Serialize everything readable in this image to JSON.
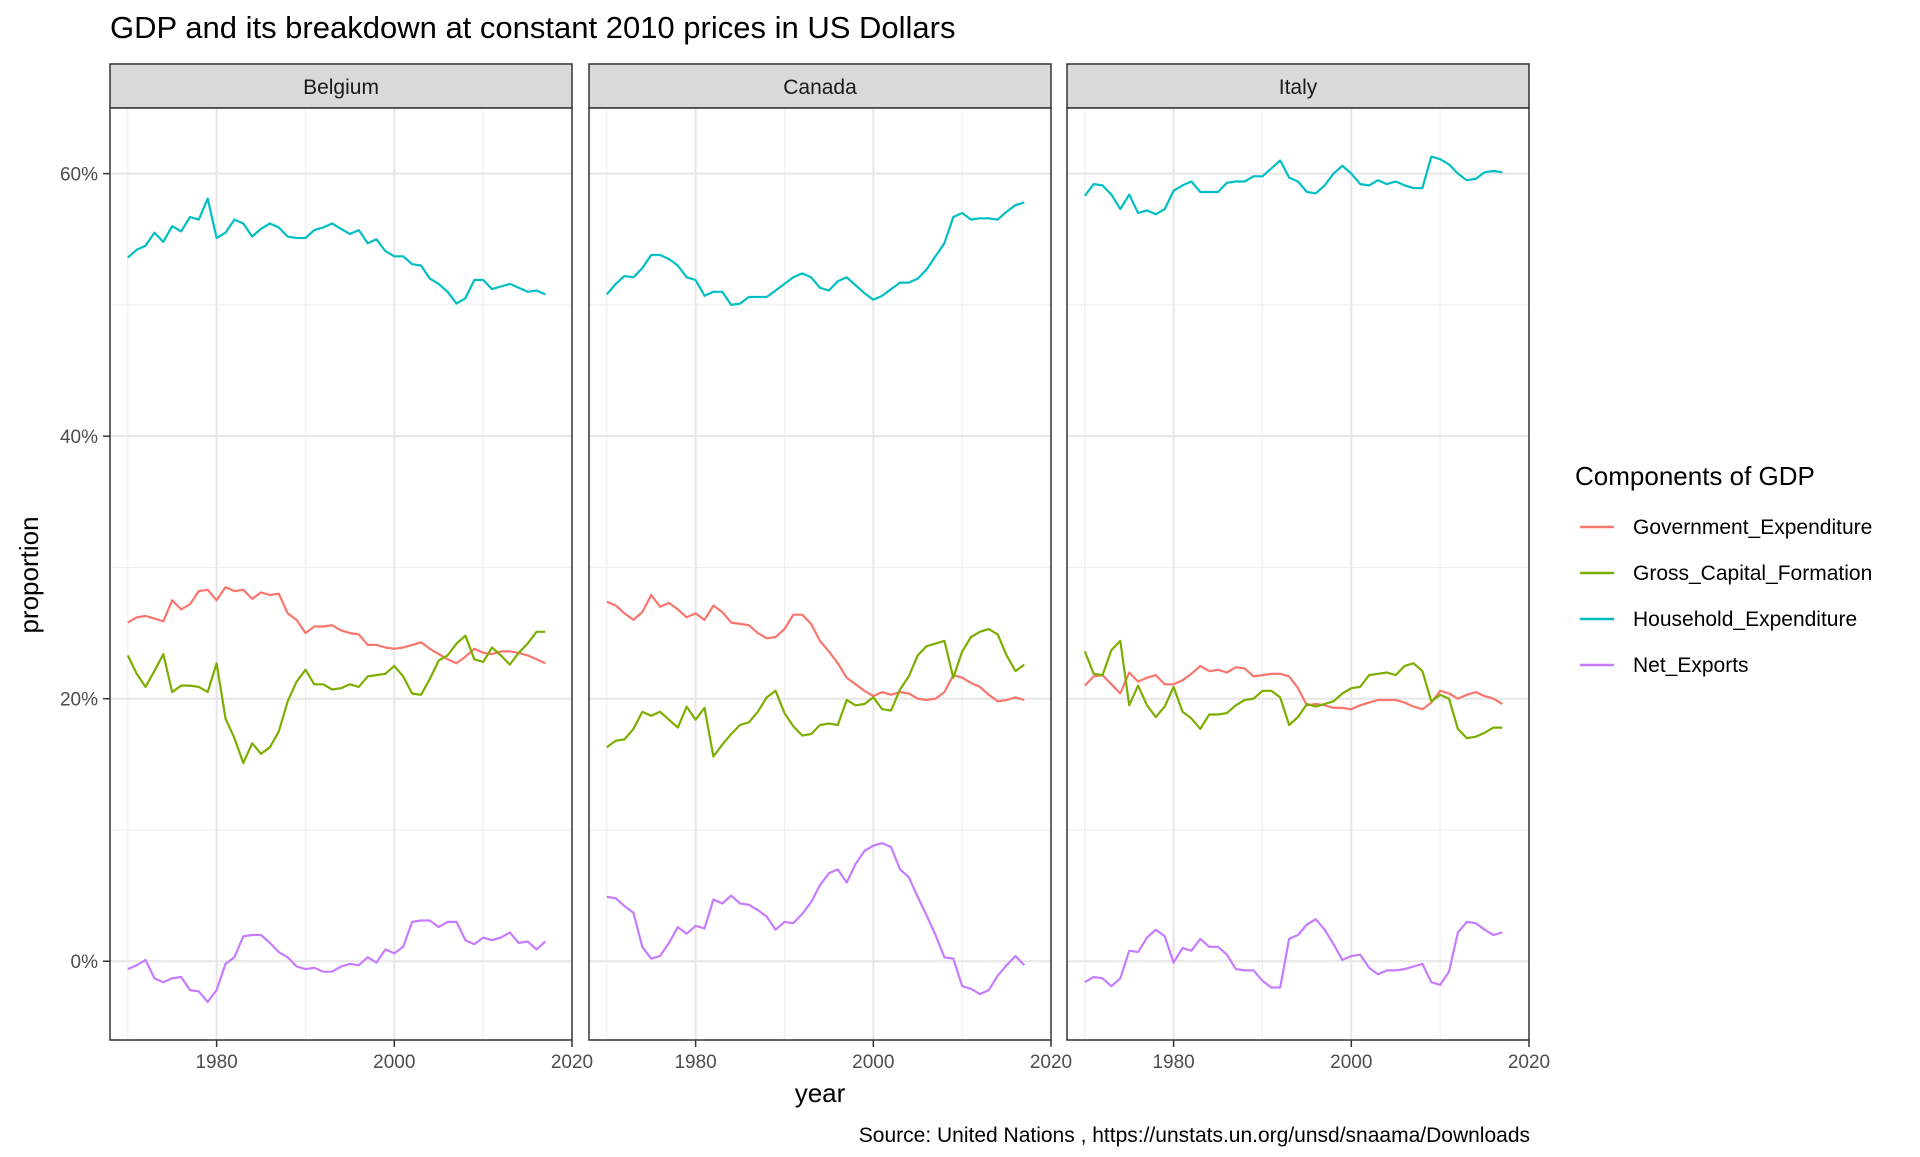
{
  "title": "GDP and its breakdown at constant 2010 prices in US Dollars",
  "caption": "Source: United Nations , https://unstats.un.org/unsd/snaama/Downloads",
  "xlabel": "year",
  "ylabel": "proportion",
  "legend_title": "Components of GDP",
  "chart_data": {
    "type": "line",
    "facets": [
      "Belgium",
      "Canada",
      "Italy"
    ],
    "x_range": [
      1968,
      2020
    ],
    "y_range": [
      -0.06,
      0.65
    ],
    "x_ticks": [
      1980,
      2000,
      2020
    ],
    "x_tick_labels": [
      "1980",
      "2000",
      "2020"
    ],
    "y_ticks": [
      0,
      0.2,
      0.4,
      0.6
    ],
    "y_tick_labels": [
      "0%",
      "20%",
      "40%",
      "60%"
    ],
    "grid": true,
    "legend_position": "right",
    "series_names": [
      "Government_Expenditure",
      "Gross_Capital_Formation",
      "Household_Expenditure",
      "Net_Exports"
    ],
    "colors": {
      "Government_Expenditure": "#F8766D",
      "Gross_Capital_Formation": "#7CAE00",
      "Household_Expenditure": "#00BFC4",
      "Net_Exports": "#C77CFF"
    },
    "x": [
      1970,
      1971,
      1972,
      1973,
      1974,
      1975,
      1976,
      1977,
      1978,
      1979,
      1980,
      1981,
      1982,
      1983,
      1984,
      1985,
      1986,
      1987,
      1988,
      1989,
      1990,
      1991,
      1992,
      1993,
      1994,
      1995,
      1996,
      1997,
      1998,
      1999,
      2000,
      2001,
      2002,
      2003,
      2004,
      2005,
      2006,
      2007,
      2008,
      2009,
      2010,
      2011,
      2012,
      2013,
      2014,
      2015,
      2016,
      2017
    ],
    "panels": [
      {
        "facet": "Belgium",
        "series": [
          {
            "name": "Government_Expenditure",
            "values": [
              0.258,
              0.262,
              0.263,
              0.261,
              0.259,
              0.275,
              0.268,
              0.272,
              0.282,
              0.283,
              0.275,
              0.285,
              0.282,
              0.283,
              0.276,
              0.281,
              0.279,
              0.28,
              0.265,
              0.26,
              0.25,
              0.255,
              0.255,
              0.256,
              0.252,
              0.25,
              0.249,
              0.241,
              0.241,
              0.239,
              0.238,
              0.239,
              0.241,
              0.243,
              0.238,
              0.234,
              0.23,
              0.227,
              0.232,
              0.238,
              0.235,
              0.234,
              0.236,
              0.236,
              0.235,
              0.233,
              0.23,
              0.227
            ]
          },
          {
            "name": "Gross_Capital_Formation",
            "values": [
              0.233,
              0.219,
              0.209,
              0.221,
              0.234,
              0.205,
              0.21,
              0.21,
              0.209,
              0.205,
              0.227,
              0.185,
              0.17,
              0.151,
              0.166,
              0.158,
              0.163,
              0.175,
              0.198,
              0.213,
              0.222,
              0.211,
              0.211,
              0.207,
              0.208,
              0.211,
              0.209,
              0.217,
              0.218,
              0.219,
              0.225,
              0.217,
              0.204,
              0.203,
              0.215,
              0.229,
              0.233,
              0.242,
              0.248,
              0.23,
              0.228,
              0.239,
              0.233,
              0.226,
              0.235,
              0.242,
              0.251,
              0.251
            ]
          },
          {
            "name": "Household_Expenditure",
            "values": [
              0.536,
              0.542,
              0.545,
              0.555,
              0.548,
              0.56,
              0.556,
              0.567,
              0.565,
              0.581,
              0.551,
              0.555,
              0.565,
              0.562,
              0.552,
              0.558,
              0.562,
              0.559,
              0.552,
              0.551,
              0.551,
              0.557,
              0.559,
              0.562,
              0.558,
              0.554,
              0.557,
              0.547,
              0.55,
              0.541,
              0.537,
              0.537,
              0.531,
              0.53,
              0.52,
              0.516,
              0.51,
              0.501,
              0.505,
              0.519,
              0.519,
              0.512,
              0.514,
              0.516,
              0.513,
              0.51,
              0.511,
              0.508
            ]
          },
          {
            "name": "Net_Exports",
            "values": [
              -0.006,
              -0.003,
              0.001,
              -0.013,
              -0.016,
              -0.013,
              -0.012,
              -0.022,
              -0.023,
              -0.031,
              -0.022,
              -0.002,
              0.003,
              0.019,
              0.02,
              0.02,
              0.014,
              0.007,
              0.003,
              -0.004,
              -0.006,
              -0.005,
              -0.008,
              -0.008,
              -0.004,
              -0.002,
              -0.003,
              0.003,
              -0.001,
              0.009,
              0.006,
              0.011,
              0.03,
              0.031,
              0.031,
              0.026,
              0.03,
              0.03,
              0.016,
              0.013,
              0.018,
              0.016,
              0.018,
              0.022,
              0.014,
              0.015,
              0.009,
              0.015
            ]
          }
        ]
      },
      {
        "facet": "Canada",
        "series": [
          {
            "name": "Government_Expenditure",
            "values": [
              0.274,
              0.271,
              0.265,
              0.26,
              0.266,
              0.279,
              0.27,
              0.273,
              0.268,
              0.262,
              0.265,
              0.26,
              0.271,
              0.266,
              0.258,
              0.257,
              0.256,
              0.25,
              0.246,
              0.247,
              0.253,
              0.264,
              0.264,
              0.257,
              0.244,
              0.236,
              0.227,
              0.216,
              0.211,
              0.206,
              0.202,
              0.205,
              0.203,
              0.205,
              0.204,
              0.2,
              0.199,
              0.2,
              0.205,
              0.218,
              0.216,
              0.212,
              0.209,
              0.203,
              0.198,
              0.199,
              0.201,
              0.199
            ]
          },
          {
            "name": "Gross_Capital_Formation",
            "values": [
              0.163,
              0.168,
              0.169,
              0.177,
              0.19,
              0.187,
              0.19,
              0.184,
              0.178,
              0.194,
              0.184,
              0.193,
              0.156,
              0.165,
              0.173,
              0.18,
              0.182,
              0.19,
              0.201,
              0.206,
              0.189,
              0.179,
              0.172,
              0.173,
              0.18,
              0.181,
              0.18,
              0.199,
              0.195,
              0.196,
              0.201,
              0.192,
              0.191,
              0.207,
              0.217,
              0.233,
              0.24,
              0.242,
              0.244,
              0.216,
              0.236,
              0.247,
              0.251,
              0.253,
              0.249,
              0.233,
              0.221,
              0.226
            ]
          },
          {
            "name": "Household_Expenditure",
            "values": [
              0.508,
              0.516,
              0.522,
              0.521,
              0.528,
              0.538,
              0.538,
              0.535,
              0.53,
              0.521,
              0.519,
              0.507,
              0.51,
              0.51,
              0.5,
              0.501,
              0.506,
              0.506,
              0.506,
              0.511,
              0.516,
              0.521,
              0.524,
              0.521,
              0.513,
              0.511,
              0.518,
              0.521,
              0.515,
              0.509,
              0.504,
              0.507,
              0.512,
              0.517,
              0.517,
              0.52,
              0.527,
              0.537,
              0.547,
              0.567,
              0.57,
              0.565,
              0.566,
              0.566,
              0.565,
              0.571,
              0.576,
              0.578
            ]
          },
          {
            "name": "Net_Exports",
            "values": [
              0.049,
              0.048,
              0.042,
              0.037,
              0.011,
              0.002,
              0.004,
              0.014,
              0.026,
              0.021,
              0.027,
              0.025,
              0.047,
              0.044,
              0.05,
              0.044,
              0.043,
              0.039,
              0.034,
              0.024,
              0.03,
              0.029,
              0.036,
              0.045,
              0.058,
              0.067,
              0.07,
              0.06,
              0.074,
              0.084,
              0.088,
              0.09,
              0.087,
              0.07,
              0.064,
              0.049,
              0.035,
              0.02,
              0.003,
              0.002,
              -0.019,
              -0.021,
              -0.025,
              -0.022,
              -0.011,
              -0.003,
              0.004,
              -0.003
            ]
          }
        ]
      },
      {
        "facet": "Italy",
        "series": [
          {
            "name": "Government_Expenditure",
            "values": [
              0.21,
              0.217,
              0.218,
              0.211,
              0.204,
              0.22,
              0.213,
              0.216,
              0.218,
              0.211,
              0.211,
              0.214,
              0.219,
              0.225,
              0.221,
              0.222,
              0.22,
              0.224,
              0.223,
              0.217,
              0.218,
              0.219,
              0.219,
              0.217,
              0.208,
              0.195,
              0.196,
              0.195,
              0.193,
              0.193,
              0.192,
              0.195,
              0.197,
              0.199,
              0.199,
              0.199,
              0.197,
              0.194,
              0.192,
              0.197,
              0.206,
              0.204,
              0.2,
              0.203,
              0.205,
              0.202,
              0.2,
              0.196
            ]
          },
          {
            "name": "Gross_Capital_Formation",
            "values": [
              0.236,
              0.219,
              0.218,
              0.237,
              0.244,
              0.195,
              0.21,
              0.195,
              0.186,
              0.194,
              0.209,
              0.19,
              0.185,
              0.177,
              0.188,
              0.188,
              0.189,
              0.195,
              0.199,
              0.2,
              0.206,
              0.206,
              0.201,
              0.18,
              0.186,
              0.196,
              0.194,
              0.196,
              0.198,
              0.204,
              0.208,
              0.209,
              0.218,
              0.219,
              0.22,
              0.218,
              0.225,
              0.227,
              0.221,
              0.198,
              0.203,
              0.2,
              0.177,
              0.17,
              0.171,
              0.174,
              0.178,
              0.178
            ]
          },
          {
            "name": "Household_Expenditure",
            "values": [
              0.583,
              0.592,
              0.591,
              0.584,
              0.573,
              0.584,
              0.57,
              0.572,
              0.569,
              0.573,
              0.587,
              0.591,
              0.594,
              0.586,
              0.586,
              0.586,
              0.593,
              0.594,
              0.594,
              0.598,
              0.598,
              0.604,
              0.61,
              0.597,
              0.594,
              0.586,
              0.585,
              0.591,
              0.6,
              0.606,
              0.6,
              0.592,
              0.591,
              0.595,
              0.592,
              0.594,
              0.591,
              0.589,
              0.589,
              0.613,
              0.611,
              0.607,
              0.6,
              0.595,
              0.596,
              0.601,
              0.602,
              0.601
            ]
          },
          {
            "name": "Net_Exports",
            "values": [
              -0.016,
              -0.012,
              -0.013,
              -0.019,
              -0.013,
              0.008,
              0.007,
              0.018,
              0.024,
              0.019,
              -0.001,
              0.01,
              0.008,
              0.017,
              0.011,
              0.011,
              0.005,
              -0.006,
              -0.007,
              -0.007,
              -0.015,
              -0.02,
              -0.02,
              0.017,
              0.02,
              0.028,
              0.032,
              0.024,
              0.013,
              0.001,
              0.004,
              0.005,
              -0.005,
              -0.01,
              -0.007,
              -0.007,
              -0.006,
              -0.004,
              -0.002,
              -0.016,
              -0.018,
              -0.008,
              0.022,
              0.03,
              0.029,
              0.024,
              0.02,
              0.022
            ]
          }
        ]
      }
    ]
  }
}
